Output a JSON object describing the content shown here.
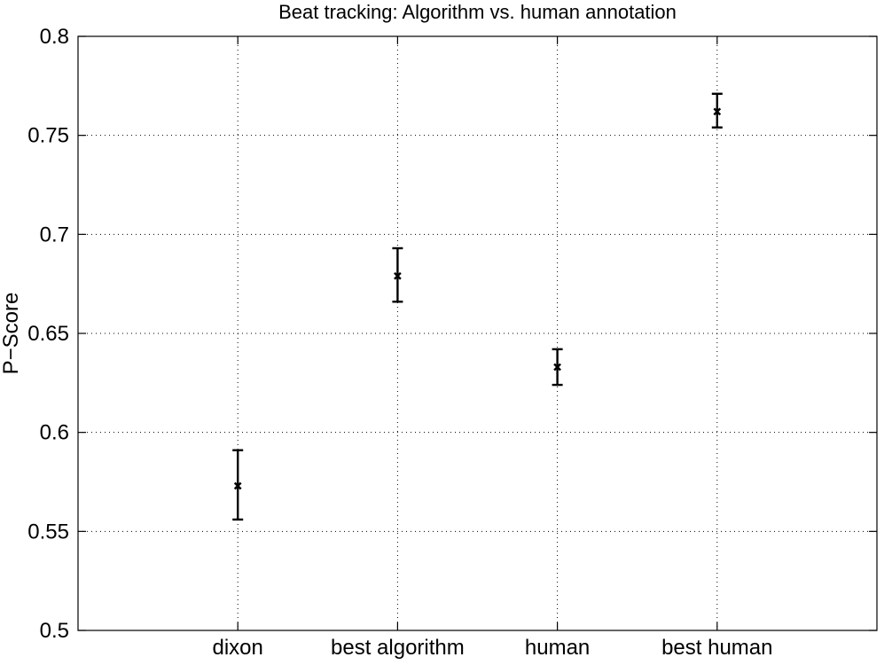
{
  "chart_data": {
    "type": "scatter",
    "title": "Beat tracking: Algorithm vs. human annotation",
    "xlabel": "",
    "ylabel": "P−Score",
    "categories": [
      "dixon",
      "best algorithm",
      "human",
      "best human"
    ],
    "x_positions": [
      1,
      2,
      3,
      4
    ],
    "xlim": [
      0,
      5
    ],
    "ylim": [
      0.5,
      0.8
    ],
    "y_ticks": [
      0.5,
      0.55,
      0.6,
      0.65,
      0.7,
      0.75,
      0.8
    ],
    "y_tick_labels": [
      "0.5",
      "0.55",
      "0.6",
      "0.65",
      "0.7",
      "0.75",
      "0.8"
    ],
    "grid": true,
    "series": [
      {
        "values": [
          0.573,
          0.679,
          0.633,
          0.762
        ],
        "err_low": [
          0.556,
          0.666,
          0.624,
          0.754
        ],
        "err_high": [
          0.591,
          0.693,
          0.642,
          0.771
        ],
        "marker": "x",
        "color": "#000000"
      }
    ]
  }
}
